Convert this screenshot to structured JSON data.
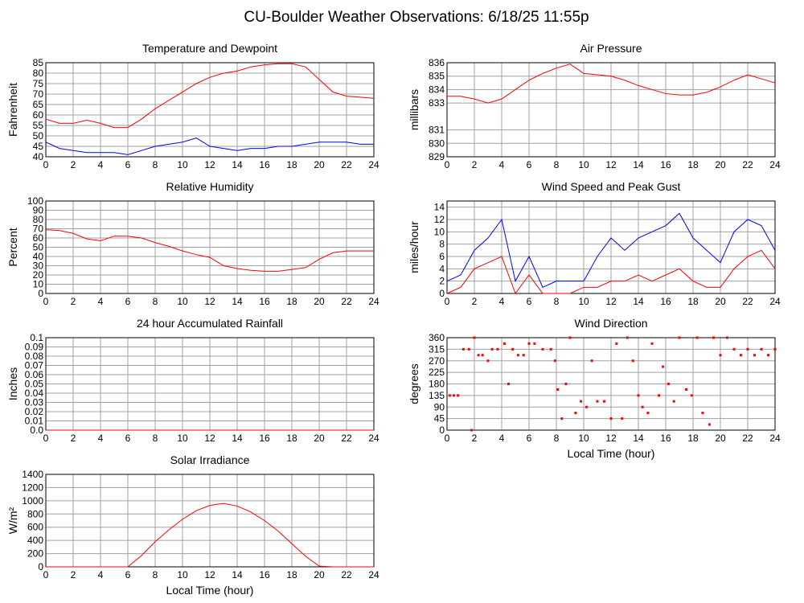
{
  "title": "CU-Boulder Weather Observations: 6/18/25 11:55p",
  "chart_data": [
    {
      "type": "line",
      "title": "Temperature and Dewpoint",
      "ylabel": "Fahrenheit",
      "xlim": [
        0,
        24
      ],
      "xticks": [
        0,
        2,
        4,
        6,
        8,
        10,
        12,
        14,
        16,
        18,
        20,
        22,
        24
      ],
      "ylim": [
        40,
        85
      ],
      "yticks": [
        40,
        45,
        50,
        55,
        60,
        65,
        70,
        75,
        80,
        85
      ],
      "grid": true,
      "x": [
        0,
        1,
        2,
        3,
        4,
        5,
        6,
        7,
        8,
        9,
        10,
        11,
        12,
        13,
        14,
        15,
        16,
        17,
        18,
        19,
        20,
        21,
        22,
        23,
        24
      ],
      "series": [
        {
          "color": "#ff0000",
          "values": [
            58,
            56,
            56,
            57.5,
            56,
            54,
            54,
            58,
            63,
            67,
            71,
            75,
            78,
            80,
            81,
            83,
            84,
            84.5,
            84.5,
            83,
            77,
            71,
            69,
            68.5,
            68
          ]
        },
        {
          "color": "#0000ff",
          "values": [
            47,
            44,
            43,
            42,
            42,
            42,
            41,
            43,
            45,
            46,
            47,
            49,
            45,
            44,
            43,
            44,
            44,
            45,
            45,
            46,
            47,
            47,
            47,
            46,
            46
          ]
        }
      ]
    },
    {
      "type": "line",
      "title": "Air Pressure",
      "ylabel": "millibars",
      "xlim": [
        0,
        24
      ],
      "xticks": [
        0,
        2,
        4,
        6,
        8,
        10,
        12,
        14,
        16,
        18,
        20,
        22,
        24
      ],
      "ylim": [
        829,
        836
      ],
      "yticks": [
        829,
        830,
        831,
        833,
        834,
        835,
        836
      ],
      "grid": true,
      "x": [
        0,
        1,
        2,
        3,
        4,
        5,
        6,
        7,
        8,
        9,
        10,
        11,
        12,
        13,
        14,
        15,
        16,
        17,
        18,
        19,
        20,
        21,
        22,
        23,
        24
      ],
      "series": [
        {
          "color": "#ff0000",
          "values": [
            833.5,
            833.5,
            833.3,
            833.0,
            833.3,
            834.0,
            834.7,
            835.2,
            835.6,
            835.9,
            835.2,
            835.1,
            835.0,
            834.7,
            834.3,
            834.0,
            833.7,
            833.6,
            833.6,
            833.8,
            834.2,
            834.7,
            835.1,
            834.8,
            834.5
          ]
        }
      ]
    },
    {
      "type": "line",
      "title": "Relative Humidity",
      "ylabel": "Percent",
      "xlim": [
        0,
        24
      ],
      "xticks": [
        0,
        2,
        4,
        6,
        8,
        10,
        12,
        14,
        16,
        18,
        20,
        22,
        24
      ],
      "ylim": [
        0,
        100
      ],
      "yticks": [
        0,
        10,
        20,
        30,
        40,
        50,
        60,
        70,
        80,
        90,
        100
      ],
      "grid": true,
      "x": [
        0,
        1,
        2,
        3,
        4,
        5,
        6,
        7,
        8,
        9,
        10,
        11,
        12,
        13,
        14,
        15,
        16,
        17,
        18,
        19,
        20,
        21,
        22,
        23,
        24
      ],
      "series": [
        {
          "color": "#ff0000",
          "values": [
            69,
            68,
            65,
            59,
            57,
            62,
            62,
            60,
            55,
            51,
            46,
            42,
            39,
            30,
            27,
            25,
            24,
            24,
            26,
            28,
            37,
            44,
            46,
            46,
            46
          ]
        }
      ]
    },
    {
      "type": "line",
      "title": "Wind Speed and Peak Gust",
      "ylabel": "miles/hour",
      "xlim": [
        0,
        24
      ],
      "xticks": [
        0,
        2,
        4,
        6,
        8,
        10,
        12,
        14,
        16,
        18,
        20,
        22,
        24
      ],
      "ylim": [
        0,
        15
      ],
      "yticks": [
        0,
        2,
        4,
        6,
        8,
        10,
        12,
        14
      ],
      "grid": true,
      "x": [
        0,
        1,
        2,
        3,
        4,
        5,
        6,
        7,
        8,
        9,
        10,
        11,
        12,
        13,
        14,
        15,
        16,
        17,
        18,
        19,
        20,
        21,
        22,
        23,
        24
      ],
      "series": [
        {
          "color": "#0000ff",
          "values": [
            2,
            3,
            7,
            9,
            12,
            2,
            6,
            1,
            2,
            2,
            2,
            6,
            9,
            7,
            9,
            10,
            11,
            13,
            9,
            7,
            5,
            10,
            12,
            11,
            7
          ]
        },
        {
          "color": "#ff0000",
          "values": [
            0,
            1,
            4,
            5,
            6,
            0,
            3,
            0,
            0,
            0,
            1,
            1,
            2,
            2,
            3,
            2,
            3,
            4,
            2,
            1,
            1,
            4,
            6,
            7,
            4
          ]
        }
      ]
    },
    {
      "type": "line",
      "title": "24 hour Accumulated Rainfall",
      "ylabel": "Inches",
      "xlim": [
        0,
        24
      ],
      "xticks": [
        0,
        2,
        4,
        6,
        8,
        10,
        12,
        14,
        16,
        18,
        20,
        22,
        24
      ],
      "ylim": [
        0,
        0.1
      ],
      "yticks": [
        {
          "value": 0,
          "label": "0.0"
        },
        0.01,
        0.02,
        0.03,
        0.04,
        0.05,
        0.06,
        0.07,
        0.08,
        0.09,
        0.1
      ],
      "grid": true,
      "x": [
        0,
        1,
        2,
        3,
        4,
        5,
        6,
        7,
        8,
        9,
        10,
        11,
        12,
        13,
        14,
        15,
        16,
        17,
        18,
        19,
        20,
        21,
        22,
        23,
        24
      ],
      "series": [
        {
          "color": "#ff0000",
          "values": [
            0,
            0,
            0,
            0,
            0,
            0,
            0,
            0,
            0,
            0,
            0,
            0,
            0,
            0,
            0,
            0,
            0,
            0,
            0,
            0,
            0,
            0,
            0,
            0,
            0
          ]
        }
      ]
    },
    {
      "type": "scatter",
      "title": "Wind Direction",
      "ylabel": "degrees",
      "xlabel": "Local Time (hour)",
      "xlim": [
        0,
        24
      ],
      "xticks": [
        0,
        2,
        4,
        6,
        8,
        10,
        12,
        14,
        16,
        18,
        20,
        22,
        24
      ],
      "ylim": [
        0,
        360
      ],
      "yticks": [
        0,
        45,
        90,
        135,
        180,
        225,
        270,
        315,
        360
      ],
      "grid": true,
      "x": [
        0.2,
        0.5,
        0.8,
        1.2,
        1.6,
        1.8,
        2.0,
        2.3,
        2.6,
        3.0,
        3.3,
        3.7,
        4.2,
        4.5,
        4.8,
        5.2,
        5.6,
        6.0,
        6.4,
        7.0,
        7.6,
        7.9,
        8.1,
        8.4,
        8.7,
        9.0,
        9.4,
        9.8,
        10.2,
        10.6,
        11.0,
        11.5,
        12.0,
        12.4,
        12.8,
        13.2,
        13.6,
        14.0,
        14.3,
        14.7,
        15.0,
        15.5,
        15.8,
        16.2,
        16.6,
        17.0,
        17.5,
        17.9,
        18.3,
        18.7,
        19.2,
        19.5,
        20.0,
        20.5,
        21.0,
        21.5,
        22.0,
        22.5,
        23.0,
        23.5,
        24
      ],
      "series": [
        {
          "color": "#ff0000",
          "values": [
            135,
            135,
            135,
            315,
            315,
            0,
            360,
            292,
            292,
            270,
            315,
            315,
            337,
            180,
            315,
            292,
            292,
            337,
            337,
            315,
            315,
            270,
            158,
            45,
            180,
            360,
            67,
            112,
            90,
            270,
            112,
            112,
            45,
            337,
            45,
            360,
            270,
            135,
            90,
            67,
            337,
            135,
            247,
            180,
            112,
            360,
            158,
            135,
            360,
            67,
            22,
            360,
            292,
            360,
            315,
            292,
            315,
            292,
            315,
            292,
            315
          ]
        }
      ]
    },
    {
      "type": "line",
      "title": "Solar Irradiance",
      "ylabel": "W/m²",
      "xlabel": "Local Time (hour)",
      "xlim": [
        0,
        24
      ],
      "xticks": [
        0,
        2,
        4,
        6,
        8,
        10,
        12,
        14,
        16,
        18,
        20,
        22,
        24
      ],
      "ylim": [
        0,
        1400
      ],
      "yticks": [
        0,
        200,
        400,
        600,
        800,
        1000,
        1200,
        1400
      ],
      "grid": true,
      "x": [
        0,
        1,
        2,
        3,
        4,
        5,
        6,
        7,
        8,
        9,
        10,
        11,
        12,
        13,
        14,
        15,
        16,
        17,
        18,
        19,
        20,
        21,
        22,
        23,
        24
      ],
      "series": [
        {
          "color": "#ff0000",
          "values": [
            0,
            0,
            0,
            0,
            0,
            0,
            0,
            170,
            380,
            560,
            720,
            850,
            930,
            960,
            920,
            830,
            700,
            540,
            350,
            160,
            10,
            0,
            0,
            0,
            0
          ]
        }
      ]
    }
  ]
}
